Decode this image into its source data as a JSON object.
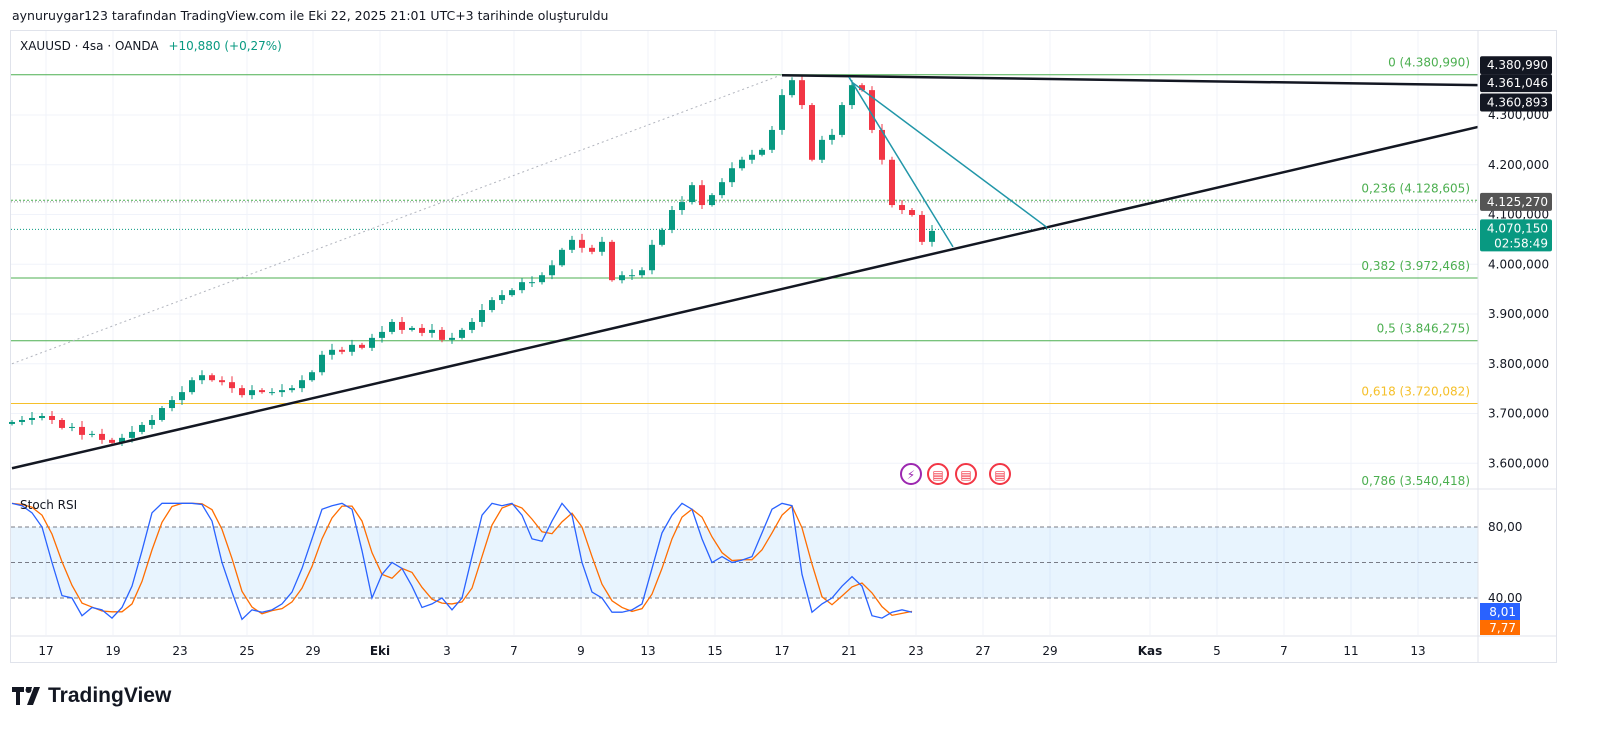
{
  "caption": "aynuruygar123 tarafından TradingView.com ile Eki 22, 2025 21:01 UTC+3 tarihinde oluşturuldu",
  "legend": {
    "symbol": "XAUUSD · 4sa · OANDA",
    "change": "+10,880 (+0,27%)"
  },
  "stoch_title": "Stoch RSI",
  "brand": "TradingView",
  "colors": {
    "up": "#089981",
    "down": "#f23645",
    "k": "#2962ff",
    "d": "#ff6d00",
    "fib": "#4caf50",
    "fib618": "#f5c02b",
    "teal": "#2196a8"
  },
  "chart_data": {
    "type": "candlestick",
    "title": "XAUUSD · 4sa · OANDA",
    "ylim": [
      3515,
      4435
    ],
    "closes": [
      3683,
      3687,
      3691,
      3695,
      3687,
      3671,
      3673,
      3657,
      3659,
      3647,
      3641,
      3651,
      3663,
      3677,
      3687,
      3711,
      3727,
      3743,
      3767,
      3777,
      3767,
      3763,
      3751,
      3737,
      3747,
      3743,
      3743,
      3747,
      3751,
      3767,
      3783,
      3818,
      3828,
      3824,
      3838,
      3832,
      3852,
      3864,
      3884,
      3868,
      3872,
      3862,
      3868,
      3848,
      3852,
      3868,
      3884,
      3908,
      3928,
      3938,
      3948,
      3964,
      3964,
      3978,
      3998,
      4029,
      4049,
      4033,
      4025,
      4045,
      3968,
      3978,
      3978,
      3988,
      4039,
      4069,
      4109,
      4125,
      4159,
      4119,
      4139,
      4165,
      4193,
      4210,
      4220,
      4230,
      4270,
      4340,
      4370,
      4320,
      4210,
      4250,
      4260,
      4320,
      4360,
      4350,
      4270,
      4210,
      4119,
      4109,
      4099,
      4045,
      4067
    ],
    "price_ticks": [
      {
        "v": 4300,
        "label": "4.300,000"
      },
      {
        "v": 4200,
        "label": "4.200,000"
      },
      {
        "v": 4100,
        "label": "4.100,000"
      },
      {
        "v": 4000,
        "label": "4.000,000"
      },
      {
        "v": 3900,
        "label": "3.900,000"
      },
      {
        "v": 3800,
        "label": "3.800,000"
      },
      {
        "v": 3700,
        "label": "3.700,000"
      },
      {
        "v": 3600,
        "label": "3.600,000"
      }
    ],
    "time_ticks": [
      {
        "i": 3.4,
        "label": "17"
      },
      {
        "i": 10.1,
        "label": "19"
      },
      {
        "i": 16.8,
        "label": "23"
      },
      {
        "i": 23.5,
        "label": "25"
      },
      {
        "i": 30.1,
        "label": "29"
      },
      {
        "i": 36.8,
        "label": "Eki"
      },
      {
        "i": 43.5,
        "label": "3"
      },
      {
        "i": 50.2,
        "label": "7"
      },
      {
        "i": 56.9,
        "label": "9"
      },
      {
        "i": 63.6,
        "label": "13"
      },
      {
        "i": 70.3,
        "label": "15"
      },
      {
        "i": 77,
        "label": "17"
      },
      {
        "i": 83.7,
        "label": "21"
      },
      {
        "i": 90.4,
        "label": "23"
      },
      {
        "i": 97.1,
        "label": "27"
      },
      {
        "i": 103.8,
        "label": "29"
      },
      {
        "i": 113.8,
        "label": "Kas"
      },
      {
        "i": 120.5,
        "label": "5"
      },
      {
        "i": 127.2,
        "label": "7"
      },
      {
        "i": 133.9,
        "label": "11"
      },
      {
        "i": 140.6,
        "label": "13"
      }
    ],
    "fib_levels": [
      {
        "r": "0",
        "v": 4380.99,
        "label": "0 (4.380,990)"
      },
      {
        "r": "0.236",
        "v": 4128.605,
        "label": "0,236 (4.128,605)"
      },
      {
        "r": "0.382",
        "v": 3972.468,
        "label": "0,382 (3.972,468)"
      },
      {
        "r": "0.5",
        "v": 3846.275,
        "label": "0,5 (3.846,275)"
      },
      {
        "r": "0.618",
        "v": 3720.082,
        "label": "0,618 (3.720,082)"
      },
      {
        "r": "0.786",
        "v": 3540.418,
        "label": "0,786 (3.540,418)"
      }
    ],
    "trendlines": [
      {
        "name": "upper-trendline",
        "from": [
          77,
          4380
        ],
        "to": [
          146.6,
          4360
        ],
        "color": "#131722"
      },
      {
        "name": "lower-trendline",
        "from": [
          0,
          3590
        ],
        "to": [
          146.6,
          4276
        ],
        "color": "#131722"
      },
      {
        "name": "teal-line-1",
        "from": [
          83.7,
          4376
        ],
        "to": [
          94.1,
          4035
        ],
        "color": "#2196a8"
      },
      {
        "name": "teal-line-2",
        "from": [
          84,
          4366
        ],
        "to": [
          103.5,
          4074
        ],
        "color": "#2196a8"
      },
      {
        "name": "fib-diagonal",
        "from": [
          0,
          3800
        ],
        "to": [
          77,
          4380.99
        ],
        "color": "#b2b5be"
      }
    ],
    "price_badges": [
      {
        "label": "4.380,990",
        "v": 4400,
        "bg": "#131722"
      },
      {
        "label": "4.361,046",
        "v": 4364,
        "bg": "#131722"
      },
      {
        "label": "4.360,893",
        "v": 4325,
        "bg": "#131722"
      },
      {
        "label": "4.125,270",
        "v": 4125.27,
        "bg": "#555"
      }
    ],
    "last_price": {
      "v": 4070.15,
      "label": "4.070,150",
      "countdown": "02:58:49",
      "ref_line": 4125.27
    },
    "stoch": {
      "k": [
        100,
        98,
        92,
        80,
        50,
        22,
        20,
        5,
        12,
        10,
        3,
        12,
        30,
        60,
        92,
        100,
        100,
        100,
        100,
        99,
        85,
        50,
        25,
        2,
        10,
        8,
        10,
        15,
        25,
        45,
        70,
        95,
        98,
        100,
        95,
        60,
        20,
        40,
        50,
        45,
        30,
        12,
        15,
        20,
        10,
        20,
        55,
        90,
        100,
        98,
        100,
        90,
        70,
        68,
        85,
        100,
        90,
        50,
        25,
        20,
        8,
        8,
        10,
        15,
        45,
        75,
        90,
        100,
        95,
        70,
        50,
        55,
        50,
        52,
        55,
        75,
        95,
        100,
        98,
        40,
        8,
        15,
        20,
        30,
        38,
        30,
        5,
        3,
        8,
        10,
        8
      ],
      "bands": [
        80,
        50,
        20
      ],
      "axis_ticks": [
        {
          "v": 80,
          "label": "80,00"
        },
        {
          "v": 40,
          "label": "40,00"
        }
      ],
      "k_last": "8,01",
      "d_last": "7,77"
    }
  }
}
